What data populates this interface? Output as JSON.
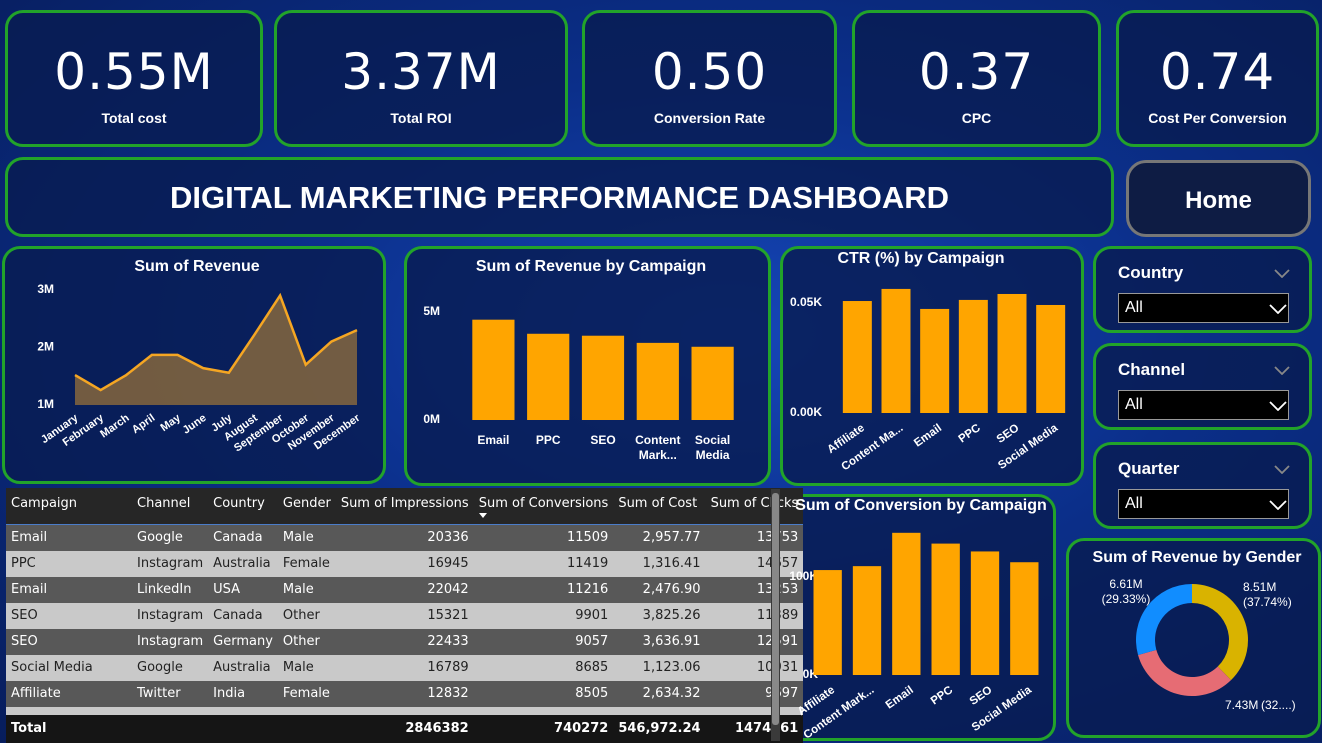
{
  "kpis": [
    {
      "value": "0.55M",
      "label": "Total cost"
    },
    {
      "value": "3.37M",
      "label": "Total ROI"
    },
    {
      "value": "0.50",
      "label": "Conversion Rate"
    },
    {
      "value": "0.37",
      "label": "CPC"
    },
    {
      "value": "0.74",
      "label": "Cost Per Conversion"
    }
  ],
  "header": {
    "title": "DIGITAL MARKETING PERFORMANCE DASHBOARD",
    "button": "Home"
  },
  "filters": [
    {
      "label": "Country",
      "value": "All"
    },
    {
      "label": "Channel",
      "value": "All"
    },
    {
      "label": "Quarter",
      "value": "All"
    }
  ],
  "chart_data": [
    {
      "type": "area",
      "title": "Sum of Revenue",
      "categories": [
        "January",
        "February",
        "March",
        "April",
        "May",
        "June",
        "July",
        "August",
        "September",
        "October",
        "November",
        "December"
      ],
      "values": [
        1520000,
        1260000,
        1520000,
        1870000,
        1870000,
        1640000,
        1560000,
        2220000,
        2900000,
        1700000,
        2100000,
        2300000
      ],
      "color": "#f5a623",
      "ylim": [
        1000000,
        3100000
      ],
      "yticks": [
        {
          "value": 1000000,
          "label": "1M"
        },
        {
          "value": 2000000,
          "label": "2M"
        },
        {
          "value": 3000000,
          "label": "3M"
        }
      ]
    },
    {
      "type": "bar",
      "title": "Sum of Revenue by Campaign",
      "categories": [
        "Email",
        "PPC",
        "SEO",
        "Content Mark...",
        "Social Media"
      ],
      "values": [
        4630000,
        3980000,
        3890000,
        3560000,
        3380000
      ],
      "color": "#ffa500",
      "ylim": [
        0,
        6000000
      ],
      "yticks": [
        {
          "value": 0,
          "label": "0M"
        },
        {
          "value": 5000000,
          "label": "5M"
        }
      ]
    },
    {
      "type": "bar",
      "title": "CTR (%) by Campaign",
      "categories": [
        "Affiliate",
        "Content Ma...",
        "Email",
        "PPC",
        "SEO",
        "Social Media"
      ],
      "values": [
        50.9,
        56.4,
        47.3,
        51.4,
        54.1,
        49.1
      ],
      "color": "#ffa500",
      "ylim": [
        0,
        60
      ],
      "yticks": [
        {
          "value": 0,
          "label": "0.00K"
        },
        {
          "value": 50,
          "label": "0.05K"
        }
      ]
    },
    {
      "type": "bar",
      "title": "Sum of Conversion by Campaign",
      "categories": [
        "Affiliate",
        "Content Mark...",
        "Email",
        "PPC",
        "SEO",
        "Social Media"
      ],
      "values": [
        107000,
        111000,
        145000,
        134000,
        126000,
        115000
      ],
      "color": "#ffa500",
      "ylim": [
        0,
        155000
      ],
      "yticks": [
        {
          "value": 0,
          "label": "0K"
        },
        {
          "value": 100000,
          "label": "100K"
        }
      ]
    },
    {
      "type": "donut",
      "title": "Sum of Revenue by Gender",
      "values": [
        8510000,
        7430000,
        6610000
      ],
      "value_labels": [
        "8.51M",
        "7.43M",
        "6.61M"
      ],
      "percent_labels": [
        "(37.74%)",
        "(32....)",
        "(29.33%)"
      ],
      "colors": [
        "#d9b300",
        "#e66c74",
        "#118dff"
      ]
    }
  ],
  "table": {
    "columns": [
      "Campaign",
      "Channel",
      "Country",
      "Gender",
      "Sum of Impressions",
      "Sum of Conversions",
      "Sum of Cost",
      "Sum of Clicks"
    ],
    "rows": [
      [
        "Email",
        "Google",
        "Canada",
        "Male",
        "20336",
        "11509",
        "2,957.77",
        "13753"
      ],
      [
        "PPC",
        "Instagram",
        "Australia",
        "Female",
        "16945",
        "11419",
        "1,316.41",
        "14657"
      ],
      [
        "Email",
        "LinkedIn",
        "USA",
        "Male",
        "22042",
        "11216",
        "2,476.90",
        "13253"
      ],
      [
        "SEO",
        "Instagram",
        "Canada",
        "Other",
        "15321",
        "9901",
        "3,825.26",
        "11389"
      ],
      [
        "SEO",
        "Instagram",
        "Germany",
        "Other",
        "22433",
        "9057",
        "3,636.91",
        "12591"
      ],
      [
        "Social Media",
        "Google",
        "Australia",
        "Male",
        "16789",
        "8685",
        "1,123.06",
        "10031"
      ],
      [
        "Affiliate",
        "Twitter",
        "India",
        "Female",
        "12832",
        "8505",
        "2,634.32",
        "9697"
      ]
    ],
    "total": {
      "label": "Total",
      "values": [
        "2846382",
        "740272",
        "546,972.24",
        "1474761"
      ]
    }
  }
}
